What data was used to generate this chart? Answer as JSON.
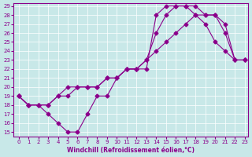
{
  "xlabel": "Windchill (Refroidissement éolien,°C)",
  "ylabel": "",
  "xlim": [
    0,
    23
  ],
  "ylim": [
    15,
    29
  ],
  "xticks": [
    0,
    1,
    2,
    3,
    4,
    5,
    6,
    7,
    8,
    9,
    10,
    11,
    12,
    13,
    14,
    15,
    16,
    17,
    18,
    19,
    20,
    21,
    22,
    23
  ],
  "yticks": [
    15,
    16,
    17,
    18,
    19,
    20,
    21,
    22,
    23,
    24,
    25,
    26,
    27,
    28,
    29
  ],
  "line_color": "#8B008B",
  "bg_color": "#c8e8e8",
  "grid_color": "#ffffff",
  "line1_x": [
    0,
    1,
    2,
    3,
    4,
    5,
    6,
    7,
    8,
    9,
    10,
    11,
    12,
    13,
    14,
    15,
    16,
    17,
    18,
    19,
    20,
    21,
    22,
    23
  ],
  "line1_y": [
    19,
    18,
    18,
    17,
    16,
    15,
    15,
    17,
    19,
    19,
    21,
    22,
    22,
    22,
    28,
    29,
    29,
    29,
    28,
    27,
    25,
    24,
    23,
    23
  ],
  "line2_x": [
    0,
    1,
    2,
    3,
    4,
    5,
    6,
    7,
    8,
    9,
    10,
    11,
    12,
    13,
    14,
    15,
    16,
    17,
    18,
    19,
    20,
    21,
    22,
    23
  ],
  "line2_y": [
    19,
    18,
    18,
    18,
    19,
    19,
    20,
    20,
    20,
    21,
    21,
    22,
    22,
    23,
    26,
    28,
    29,
    29,
    29,
    28,
    28,
    27,
    23,
    23
  ],
  "line3_x": [
    0,
    1,
    2,
    3,
    4,
    5,
    6,
    7,
    8,
    9,
    10,
    11,
    12,
    13,
    14,
    15,
    16,
    17,
    18,
    19,
    20,
    21,
    22,
    23
  ],
  "line3_y": [
    19,
    18,
    18,
    18,
    19,
    20,
    20,
    20,
    20,
    21,
    21,
    22,
    22,
    23,
    24,
    25,
    26,
    27,
    28,
    28,
    28,
    26,
    23,
    23
  ]
}
